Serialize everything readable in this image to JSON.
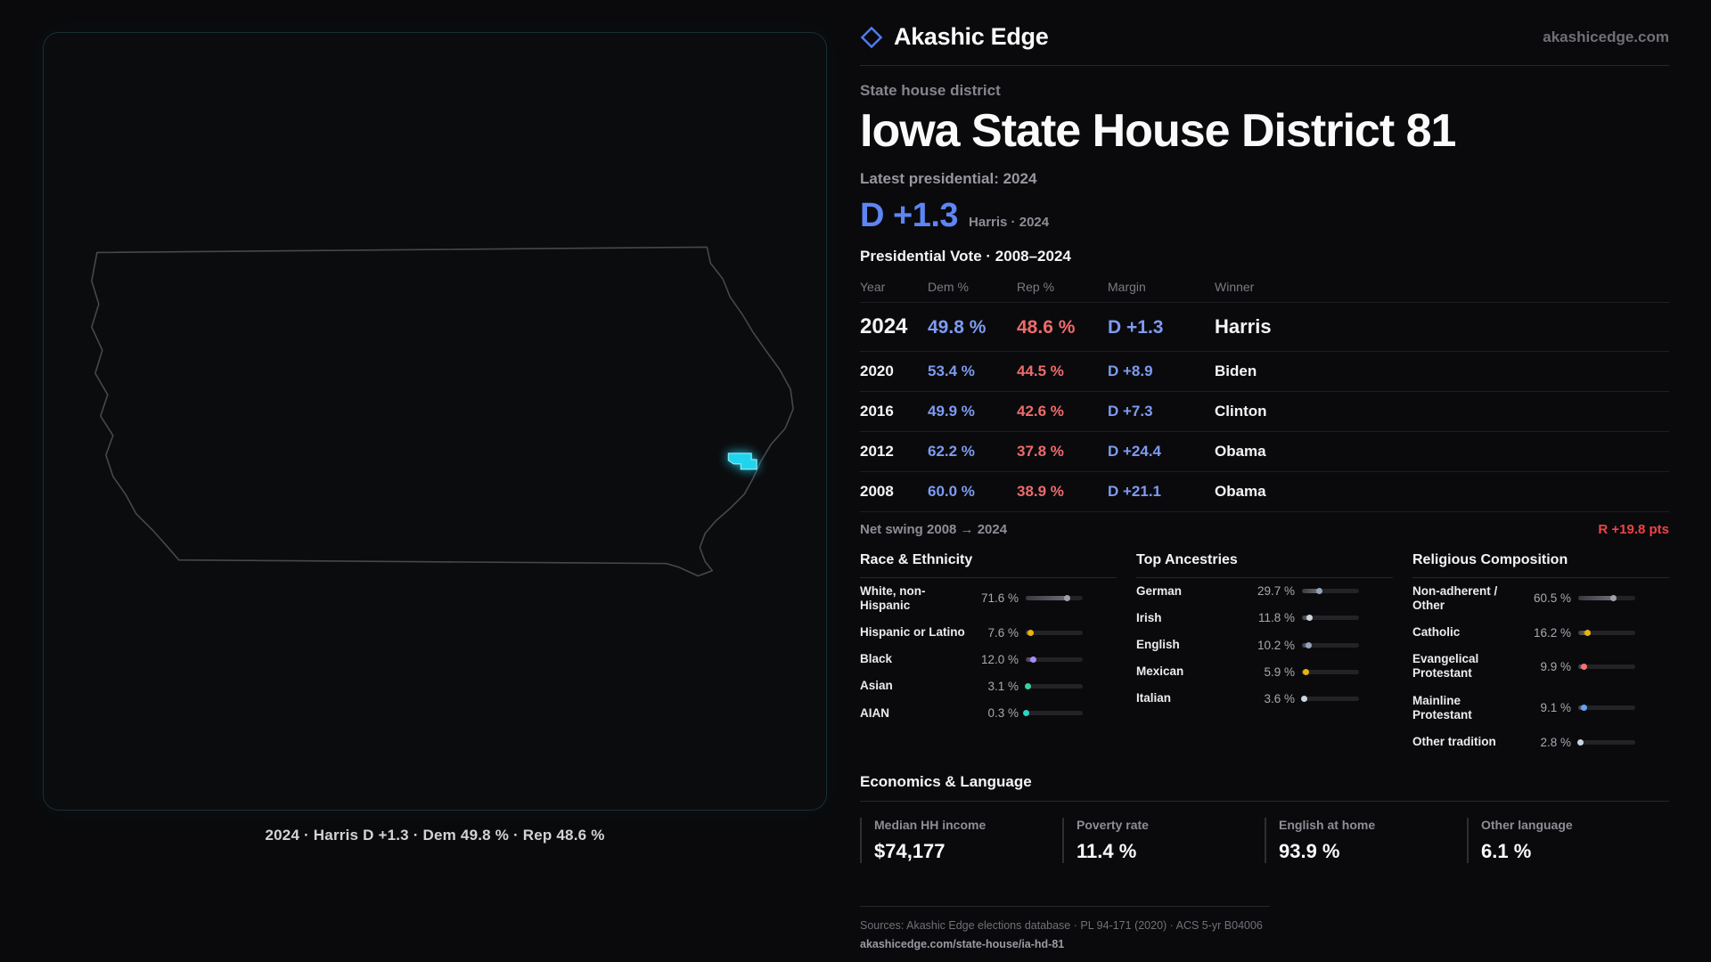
{
  "brand": {
    "name": "Akashic Edge",
    "domain": "akashicedge.com"
  },
  "map": {
    "caption": "2024 · Harris D +1.3 · Dem 49.8 % · Rep 48.6 %"
  },
  "header": {
    "kicker": "State house district",
    "title": "Iowa State House District 81",
    "latest_label": "Latest presidential: 2024",
    "headline_margin": "D +1.3",
    "headline_note": "Harris · 2024"
  },
  "table": {
    "title": "Presidential Vote · 2008–2024",
    "columns": [
      "Year",
      "Dem %",
      "Rep %",
      "Margin",
      "Winner"
    ],
    "rows": [
      {
        "year": "2024",
        "dem": "49.8 %",
        "rep": "48.6 %",
        "margin": "D +1.3",
        "winner": "Harris"
      },
      {
        "year": "2020",
        "dem": "53.4 %",
        "rep": "44.5 %",
        "margin": "D +8.9",
        "winner": "Biden"
      },
      {
        "year": "2016",
        "dem": "49.9 %",
        "rep": "42.6 %",
        "margin": "D +7.3",
        "winner": "Clinton"
      },
      {
        "year": "2012",
        "dem": "62.2 %",
        "rep": "37.8 %",
        "margin": "D +24.4",
        "winner": "Obama"
      },
      {
        "year": "2008",
        "dem": "60.0 %",
        "rep": "38.9 %",
        "margin": "D +21.1",
        "winner": "Obama"
      }
    ],
    "net_swing_label": "Net swing 2008 → 2024",
    "net_swing_value": "R +19.8 pts"
  },
  "demographics": {
    "race": {
      "title": "Race & Ethnicity",
      "items": [
        {
          "label": "White, non-Hispanic",
          "value": "71.6 %",
          "pct": 71.6,
          "color": "#a1a1aa"
        },
        {
          "label": "Hispanic or Latino",
          "value": "7.6 %",
          "pct": 7.6,
          "color": "#eab308"
        },
        {
          "label": "Black",
          "value": "12.0 %",
          "pct": 12.0,
          "color": "#a78bfa"
        },
        {
          "label": "Asian",
          "value": "3.1 %",
          "pct": 3.1,
          "color": "#34d399"
        },
        {
          "label": "AIAN",
          "value": "0.3 %",
          "pct": 0.3,
          "color": "#2dd4bf"
        }
      ]
    },
    "ancestries": {
      "title": "Top Ancestries",
      "items": [
        {
          "label": "German",
          "value": "29.7 %",
          "pct": 29.7,
          "color": "#94a3b8"
        },
        {
          "label": "Irish",
          "value": "11.8 %",
          "pct": 11.8,
          "color": "#cbd5e1"
        },
        {
          "label": "English",
          "value": "10.2 %",
          "pct": 10.2,
          "color": "#94a3b8"
        },
        {
          "label": "Mexican",
          "value": "5.9 %",
          "pct": 5.9,
          "color": "#eab308"
        },
        {
          "label": "Italian",
          "value": "3.6 %",
          "pct": 3.6,
          "color": "#cbd5e1"
        }
      ]
    },
    "religion": {
      "title": "Religious Composition",
      "items": [
        {
          "label": "Non-adherent / Other",
          "value": "60.5 %",
          "pct": 60.5,
          "color": "#a1a1aa"
        },
        {
          "label": "Catholic",
          "value": "16.2 %",
          "pct": 16.2,
          "color": "#eab308"
        },
        {
          "label": "Evangelical Protestant",
          "value": "9.9 %",
          "pct": 9.9,
          "color": "#f87171"
        },
        {
          "label": "Mainline Protestant",
          "value": "9.1 %",
          "pct": 9.1,
          "color": "#60a5fa"
        },
        {
          "label": "Other tradition",
          "value": "2.8 %",
          "pct": 2.8,
          "color": "#cbd5e1"
        }
      ]
    }
  },
  "economics": {
    "title": "Economics & Language",
    "stats": [
      {
        "label": "Median HH income",
        "value": "$74,177"
      },
      {
        "label": "Poverty rate",
        "value": "11.4 %"
      },
      {
        "label": "English at home",
        "value": "93.9 %"
      },
      {
        "label": "Other language",
        "value": "6.1 %"
      }
    ]
  },
  "footer": {
    "sources": "Sources: Akashic Edge elections database · PL 94-171 (2020) · ACS 5-yr B04006",
    "permalink": "akashicedge.com/state-house/ia-hd-81"
  },
  "chart_data": [
    {
      "type": "table",
      "title": "Presidential Vote · 2008–2024",
      "columns": [
        "Year",
        "Dem %",
        "Rep %",
        "Margin",
        "Winner"
      ],
      "rows": [
        [
          "2024",
          49.8,
          48.6,
          "D +1.3",
          "Harris"
        ],
        [
          "2020",
          53.4,
          44.5,
          "D +8.9",
          "Biden"
        ],
        [
          "2016",
          49.9,
          42.6,
          "D +7.3",
          "Clinton"
        ],
        [
          "2012",
          62.2,
          37.8,
          "D +24.4",
          "Obama"
        ],
        [
          "2008",
          60.0,
          38.9,
          "D +21.1",
          "Obama"
        ]
      ],
      "annotations": [
        "Net swing 2008 → 2024: R +19.8 pts"
      ]
    },
    {
      "type": "bar",
      "title": "Race & Ethnicity",
      "categories": [
        "White, non-Hispanic",
        "Hispanic or Latino",
        "Black",
        "Asian",
        "AIAN"
      ],
      "values": [
        71.6,
        7.6,
        12.0,
        3.1,
        0.3
      ],
      "xlabel": "",
      "ylabel": "%",
      "ylim": [
        0,
        100
      ]
    },
    {
      "type": "bar",
      "title": "Top Ancestries",
      "categories": [
        "German",
        "Irish",
        "English",
        "Mexican",
        "Italian"
      ],
      "values": [
        29.7,
        11.8,
        10.2,
        5.9,
        3.6
      ],
      "xlabel": "",
      "ylabel": "%",
      "ylim": [
        0,
        100
      ]
    },
    {
      "type": "bar",
      "title": "Religious Composition",
      "categories": [
        "Non-adherent / Other",
        "Catholic",
        "Evangelical Protestant",
        "Mainline Protestant",
        "Other tradition"
      ],
      "values": [
        60.5,
        16.2,
        9.9,
        9.1,
        2.8
      ],
      "xlabel": "",
      "ylabel": "%",
      "ylim": [
        0,
        100
      ]
    },
    {
      "type": "table",
      "title": "Economics & Language",
      "columns": [
        "Median HH income",
        "Poverty rate",
        "English at home",
        "Other language"
      ],
      "rows": [
        [
          "$74,177",
          "11.4 %",
          "93.9 %",
          "6.1 %"
        ]
      ]
    }
  ]
}
